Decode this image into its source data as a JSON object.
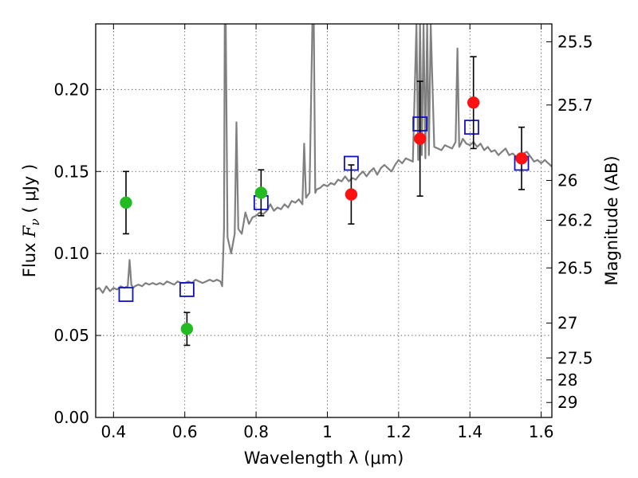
{
  "chart_data": {
    "type": "scatter",
    "xlabel": "Wavelength  λ (μm)",
    "ylabel": "Flux  F_ν  ( μJy )",
    "ylabel_parts": {
      "pre": "Flux  ",
      "sym": "F",
      "sub": "ν",
      "post": "  (  μJy )"
    },
    "y2label": "Magnitude (AB)",
    "xlim": [
      0.35,
      1.63
    ],
    "ylim": [
      0.0,
      0.24
    ],
    "grid": true,
    "legend": "none",
    "x_ticks": [
      {
        "value": 0.4,
        "label": "0.4"
      },
      {
        "value": 0.6,
        "label": "0.6"
      },
      {
        "value": 0.8,
        "label": "0.8"
      },
      {
        "value": 1.0,
        "label": "1"
      },
      {
        "value": 1.2,
        "label": "1.2"
      },
      {
        "value": 1.4,
        "label": "1.4"
      },
      {
        "value": 1.6,
        "label": "1.6"
      }
    ],
    "y_ticks": [
      {
        "value": 0.0,
        "label": "0.00"
      },
      {
        "value": 0.05,
        "label": "0.05"
      },
      {
        "value": 0.1,
        "label": "0.10"
      },
      {
        "value": 0.15,
        "label": "0.15"
      },
      {
        "value": 0.2,
        "label": "0.20"
      }
    ],
    "y2_ticks": [
      {
        "value": 25.5,
        "label": "25.5"
      },
      {
        "value": 25.7,
        "label": "25.7"
      },
      {
        "value": 26.0,
        "label": "26"
      },
      {
        "value": 26.2,
        "label": "26.2"
      },
      {
        "value": 26.5,
        "label": "26.5"
      },
      {
        "value": 27.0,
        "label": "27"
      },
      {
        "value": 27.5,
        "label": "27.5"
      },
      {
        "value": 28.0,
        "label": "28"
      },
      {
        "value": 29.0,
        "label": "29"
      }
    ],
    "series": [
      {
        "kind": "points",
        "marker": "circle",
        "color": "#22bb22",
        "x": [
          0.435,
          0.606,
          0.814
        ],
        "y": [
          0.131,
          0.054,
          0.137
        ],
        "err": [
          0.019,
          0.01,
          0.014
        ]
      },
      {
        "kind": "points",
        "marker": "circle",
        "color": "#ff1111",
        "x": [
          1.067,
          1.26,
          1.41,
          1.545
        ],
        "y": [
          0.136,
          0.17,
          0.192,
          0.158
        ],
        "err": [
          0.018,
          0.035,
          0.028,
          0.019
        ]
      },
      {
        "kind": "points",
        "marker": "open-square",
        "color": "#1111cc",
        "x": [
          0.435,
          0.606,
          0.814,
          1.067,
          1.26,
          1.405,
          1.545
        ],
        "y": [
          0.075,
          0.078,
          0.131,
          0.155,
          0.179,
          0.177,
          0.155
        ]
      },
      {
        "kind": "line",
        "color": "#808080",
        "x": [
          0.35,
          0.36,
          0.37,
          0.38,
          0.39,
          0.4,
          0.41,
          0.42,
          0.43,
          0.44,
          0.445,
          0.45,
          0.455,
          0.46,
          0.47,
          0.48,
          0.49,
          0.5,
          0.51,
          0.52,
          0.53,
          0.54,
          0.55,
          0.56,
          0.57,
          0.58,
          0.59,
          0.6,
          0.61,
          0.62,
          0.63,
          0.64,
          0.65,
          0.66,
          0.67,
          0.68,
          0.69,
          0.7,
          0.705,
          0.71,
          0.712,
          0.715,
          0.72,
          0.73,
          0.74,
          0.745,
          0.75,
          0.76,
          0.77,
          0.78,
          0.79,
          0.8,
          0.81,
          0.82,
          0.83,
          0.84,
          0.85,
          0.86,
          0.87,
          0.88,
          0.89,
          0.9,
          0.91,
          0.92,
          0.93,
          0.935,
          0.94,
          0.95,
          0.958,
          0.962,
          0.966,
          0.97,
          0.98,
          0.99,
          1.0,
          1.01,
          1.02,
          1.03,
          1.04,
          1.05,
          1.06,
          1.07,
          1.08,
          1.09,
          1.1,
          1.11,
          1.12,
          1.13,
          1.14,
          1.15,
          1.16,
          1.17,
          1.18,
          1.19,
          1.2,
          1.21,
          1.22,
          1.23,
          1.24,
          1.25,
          1.255,
          1.26,
          1.265,
          1.27,
          1.275,
          1.28,
          1.285,
          1.29,
          1.3,
          1.31,
          1.32,
          1.33,
          1.34,
          1.35,
          1.36,
          1.365,
          1.37,
          1.375,
          1.38,
          1.39,
          1.4,
          1.41,
          1.42,
          1.43,
          1.44,
          1.45,
          1.46,
          1.47,
          1.48,
          1.49,
          1.5,
          1.51,
          1.52,
          1.53,
          1.54,
          1.55,
          1.56,
          1.57,
          1.58,
          1.59,
          1.6,
          1.61,
          1.62,
          1.63
        ],
        "y": [
          0.078,
          0.079,
          0.076,
          0.08,
          0.077,
          0.079,
          0.078,
          0.08,
          0.079,
          0.08,
          0.096,
          0.081,
          0.079,
          0.08,
          0.081,
          0.08,
          0.082,
          0.081,
          0.082,
          0.081,
          0.082,
          0.081,
          0.083,
          0.082,
          0.081,
          0.083,
          0.082,
          0.082,
          0.083,
          0.082,
          0.084,
          0.083,
          0.082,
          0.083,
          0.084,
          0.083,
          0.084,
          0.083,
          0.08,
          0.115,
          0.24,
          0.24,
          0.11,
          0.1,
          0.112,
          0.18,
          0.115,
          0.112,
          0.125,
          0.118,
          0.122,
          0.123,
          0.125,
          0.124,
          0.126,
          0.13,
          0.126,
          0.128,
          0.127,
          0.13,
          0.128,
          0.132,
          0.131,
          0.133,
          0.13,
          0.167,
          0.134,
          0.137,
          0.24,
          0.24,
          0.137,
          0.139,
          0.14,
          0.142,
          0.141,
          0.143,
          0.142,
          0.145,
          0.144,
          0.147,
          0.144,
          0.146,
          0.145,
          0.148,
          0.15,
          0.147,
          0.15,
          0.152,
          0.148,
          0.152,
          0.154,
          0.152,
          0.15,
          0.154,
          0.157,
          0.155,
          0.158,
          0.157,
          0.156,
          0.24,
          0.157,
          0.24,
          0.16,
          0.24,
          0.158,
          0.24,
          0.16,
          0.24,
          0.165,
          0.164,
          0.163,
          0.166,
          0.165,
          0.164,
          0.168,
          0.225,
          0.165,
          0.167,
          0.17,
          0.167,
          0.166,
          0.168,
          0.165,
          0.167,
          0.163,
          0.165,
          0.162,
          0.163,
          0.16,
          0.162,
          0.164,
          0.16,
          0.161,
          0.159,
          0.16,
          0.161,
          0.162,
          0.159,
          0.156,
          0.157,
          0.155,
          0.157,
          0.155,
          0.153
        ]
      }
    ]
  }
}
